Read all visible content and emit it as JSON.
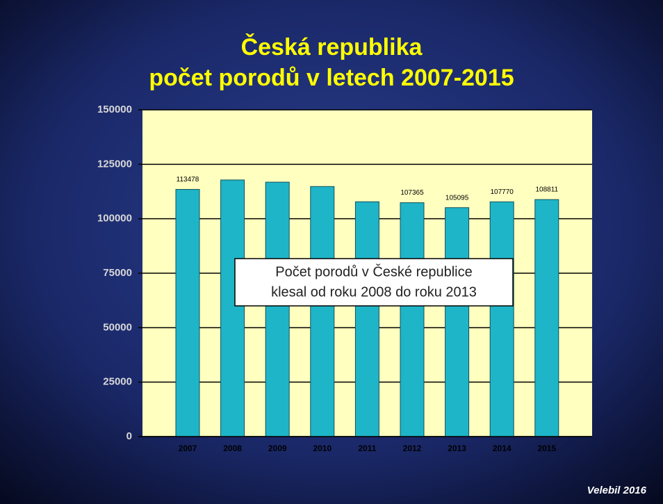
{
  "chart_data": {
    "type": "bar",
    "title": [
      "Česká republika",
      "počet porodů v letech 2007-2015"
    ],
    "categories": [
      "2007",
      "2008",
      "2009",
      "2010",
      "2011",
      "2012",
      "2013",
      "2014",
      "2015"
    ],
    "values": [
      113478,
      117800,
      116800,
      114800,
      107800,
      107365,
      105095,
      107770,
      108811
    ],
    "value_labels": [
      "113478",
      null,
      null,
      null,
      null,
      "107365",
      "105095",
      "107770",
      "108811"
    ],
    "color": "#1fb5c8",
    "ylim": [
      0,
      150000
    ],
    "yticks": [
      0,
      25000,
      50000,
      75000,
      100000,
      125000,
      150000
    ],
    "grid": true,
    "annotation": [
      "Počet porodů v České republice",
      "klesal od roku 2008 do roku 2013"
    ],
    "footer": "Velebil 2016"
  }
}
